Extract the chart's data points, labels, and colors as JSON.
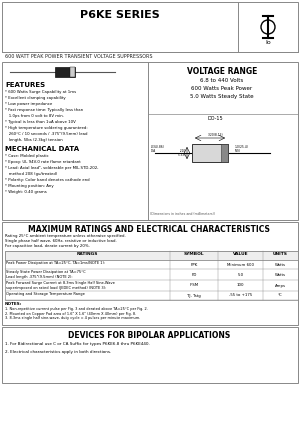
{
  "title": "P6KE SERIES",
  "subtitle": "600 WATT PEAK POWER TRANSIENT VOLTAGE SUPPRESSORS",
  "voltage_range_title": "VOLTAGE RANGE",
  "voltage_range_line1": "6.8 to 440 Volts",
  "voltage_range_line2": "600 Watts Peak Power",
  "voltage_range_line3": "5.0 Watts Steady State",
  "features_title": "FEATURES",
  "features": [
    "* 600 Watts Surge Capability at 1ms",
    "* Excellent clamping capability",
    "* Low power impedance",
    "* Fast response time: Typically less than",
    "   1.0ps from 0 volt to 8V min.",
    "* Typical is less than 1uA above 10V",
    "* High temperature soldering guaranteed:",
    "   260°C / 10 seconds / .375\"(9.5mm) lead",
    "   length, 5lbs (2.3kg) tension"
  ],
  "mech_title": "MECHANICAL DATA",
  "mech": [
    "* Case: Molded plastic",
    "* Epoxy: UL 94V-0 rate flame retardant",
    "* Lead: Axial lead², solderable per MIL-STD-202,",
    "   method 208 (gu/treated)",
    "* Polarity: Color band denotes cathode end",
    "* Mounting position: Any",
    "* Weight: 0.40 grams"
  ],
  "ratings_title": "MAXIMUM RATINGS AND ELECTRICAL CHARACTERISTICS",
  "ratings_subtitle1": "Rating 25°C ambient temperature unless otherwise specified.",
  "ratings_subtitle2": "Single phase half wave, 60Hz, resistive or inductive load.",
  "ratings_subtitle3": "For capacitive load, derate current by 20%.",
  "table_headers": [
    "RATINGS",
    "SYMBOL",
    "VALUE",
    "UNITS"
  ],
  "table_row0_col0": "Peak Power Dissipation at TA=25°C, TA=1ms(NOTE 1):",
  "table_row1_col0a": "Steady State Power Dissipation at TA=75°C",
  "table_row1_col0b": "Lead length .375\"(9.5mm) (NOTE 2):",
  "table_row2_col0a": "Peak Forward Surge Current at 8.3ms Single Half Sine-Wave",
  "table_row2_col0b": "superimposed on rated load (JEDEC method) (NOTE 3):",
  "table_row3_col0": "Operating and Storage Temperature Range",
  "table_syms": [
    "PPK",
    "PD",
    "IFSM",
    "TJ, Tstg"
  ],
  "table_vals": [
    "Minimum 600",
    "5.0",
    "100",
    "-55 to +175"
  ],
  "table_units": [
    "Watts",
    "Watts",
    "Amps",
    "°C"
  ],
  "notes_title": "NOTES:",
  "notes": [
    "1. Non-repetitive current pulse per Fig. 3 and derated above TA=25°C per Fig. 2.",
    "2. Mounted on Copper Pad area of 1.6\" X 1.6\" (40mm X 40mm) per Fig. 8.",
    "3. 8.3ms single half sine-wave, duty cycle = 4 pulses per minute maximum."
  ],
  "bipolar_title": "DEVICES FOR BIPOLAR APPLICATIONS",
  "bipolar": [
    "1. For Bidirectional use C or CA Suffix for types P6KE6.8 thru P6KE440.",
    "2. Electrical characteristics apply in both directions."
  ],
  "bg_color": "#ffffff"
}
